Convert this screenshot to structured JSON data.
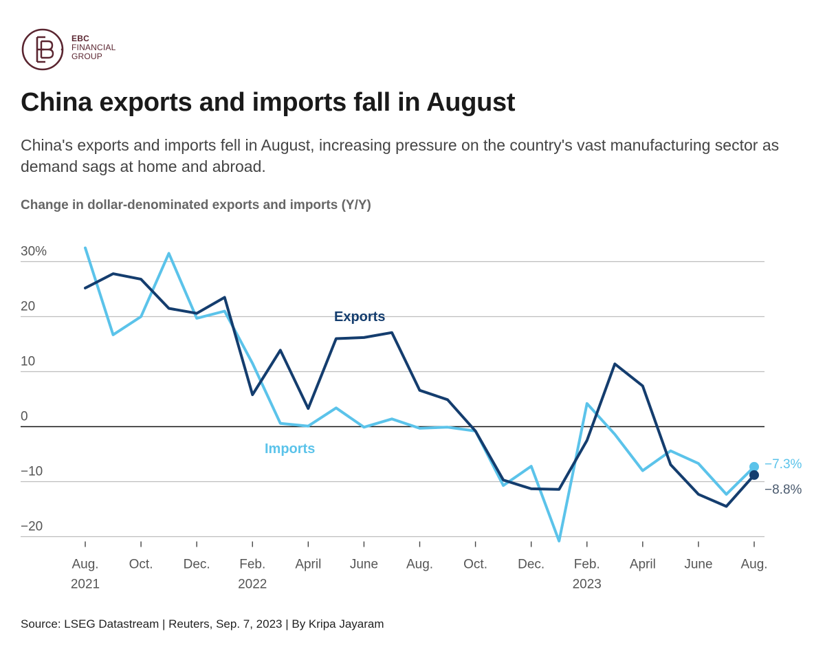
{
  "brand": {
    "line1": "EBC",
    "line2": "FINANCIAL",
    "line3": "GROUP",
    "color": "#5a2530"
  },
  "title": "China exports and imports fall in August",
  "subtitle": "China's exports and imports fell in August, increasing pressure on the country's vast manufacturing sector as demand sags at home and abroad.",
  "source": "Source: LSEG Datastream | Reuters, Sep. 7, 2023 | By Kripa Jayaram",
  "chart_data": {
    "type": "line",
    "title": "Change in dollar-denominated exports and imports (Y/Y)",
    "ylim": [
      -20,
      30
    ],
    "y_ticks": [
      {
        "value": 30,
        "label": "30%"
      },
      {
        "value": 20,
        "label": "20"
      },
      {
        "value": 10,
        "label": "10"
      },
      {
        "value": 0,
        "label": "0"
      },
      {
        "value": -10,
        "label": "−10"
      },
      {
        "value": -20,
        "label": "−20"
      }
    ],
    "months": [
      "2021-08",
      "2021-09",
      "2021-10",
      "2021-11",
      "2021-12",
      "2022-01",
      "2022-02",
      "2022-03",
      "2022-04",
      "2022-05",
      "2022-06",
      "2022-07",
      "2022-08",
      "2022-09",
      "2022-10",
      "2022-11",
      "2022-12",
      "2023-01",
      "2023-02",
      "2023-03",
      "2023-04",
      "2023-05",
      "2023-06",
      "2023-07",
      "2023-08"
    ],
    "x_ticks": [
      {
        "index": 0,
        "line1": "Aug.",
        "line2": "2021"
      },
      {
        "index": 2,
        "line1": "Oct.",
        "line2": ""
      },
      {
        "index": 4,
        "line1": "Dec.",
        "line2": ""
      },
      {
        "index": 6,
        "line1": "Feb.",
        "line2": "2022"
      },
      {
        "index": 8,
        "line1": "April",
        "line2": ""
      },
      {
        "index": 10,
        "line1": "June",
        "line2": ""
      },
      {
        "index": 12,
        "line1": "Aug.",
        "line2": ""
      },
      {
        "index": 14,
        "line1": "Oct.",
        "line2": ""
      },
      {
        "index": 16,
        "line1": "Dec.",
        "line2": ""
      },
      {
        "index": 18,
        "line1": "Feb.",
        "line2": "2023"
      },
      {
        "index": 20,
        "line1": "April",
        "line2": ""
      },
      {
        "index": 22,
        "line1": "June",
        "line2": ""
      },
      {
        "index": 24,
        "line1": "Aug.",
        "line2": ""
      }
    ],
    "series": [
      {
        "name": "Imports",
        "color": "#5bc3ea",
        "values": [
          32.5,
          16.7,
          20.0,
          31.5,
          19.7,
          21.0,
          11.5,
          0.6,
          0.1,
          3.4,
          -0.1,
          1.4,
          -0.3,
          -0.1,
          -0.8,
          -10.7,
          -7.2,
          -20.8,
          4.2,
          -1.4,
          -8.0,
          -4.4,
          -6.7,
          -12.3,
          -7.3
        ],
        "end_label": "−7.3%"
      },
      {
        "name": "Exports",
        "color": "#143d6e",
        "values": [
          25.2,
          27.8,
          26.8,
          21.5,
          20.6,
          23.5,
          5.8,
          13.9,
          3.3,
          16.0,
          16.2,
          17.1,
          6.6,
          4.9,
          -0.8,
          -9.7,
          -11.3,
          -11.4,
          -2.5,
          11.4,
          7.4,
          -6.9,
          -12.3,
          -14.5,
          -8.8
        ],
        "end_label": "−8.8%"
      }
    ],
    "grid": true
  }
}
